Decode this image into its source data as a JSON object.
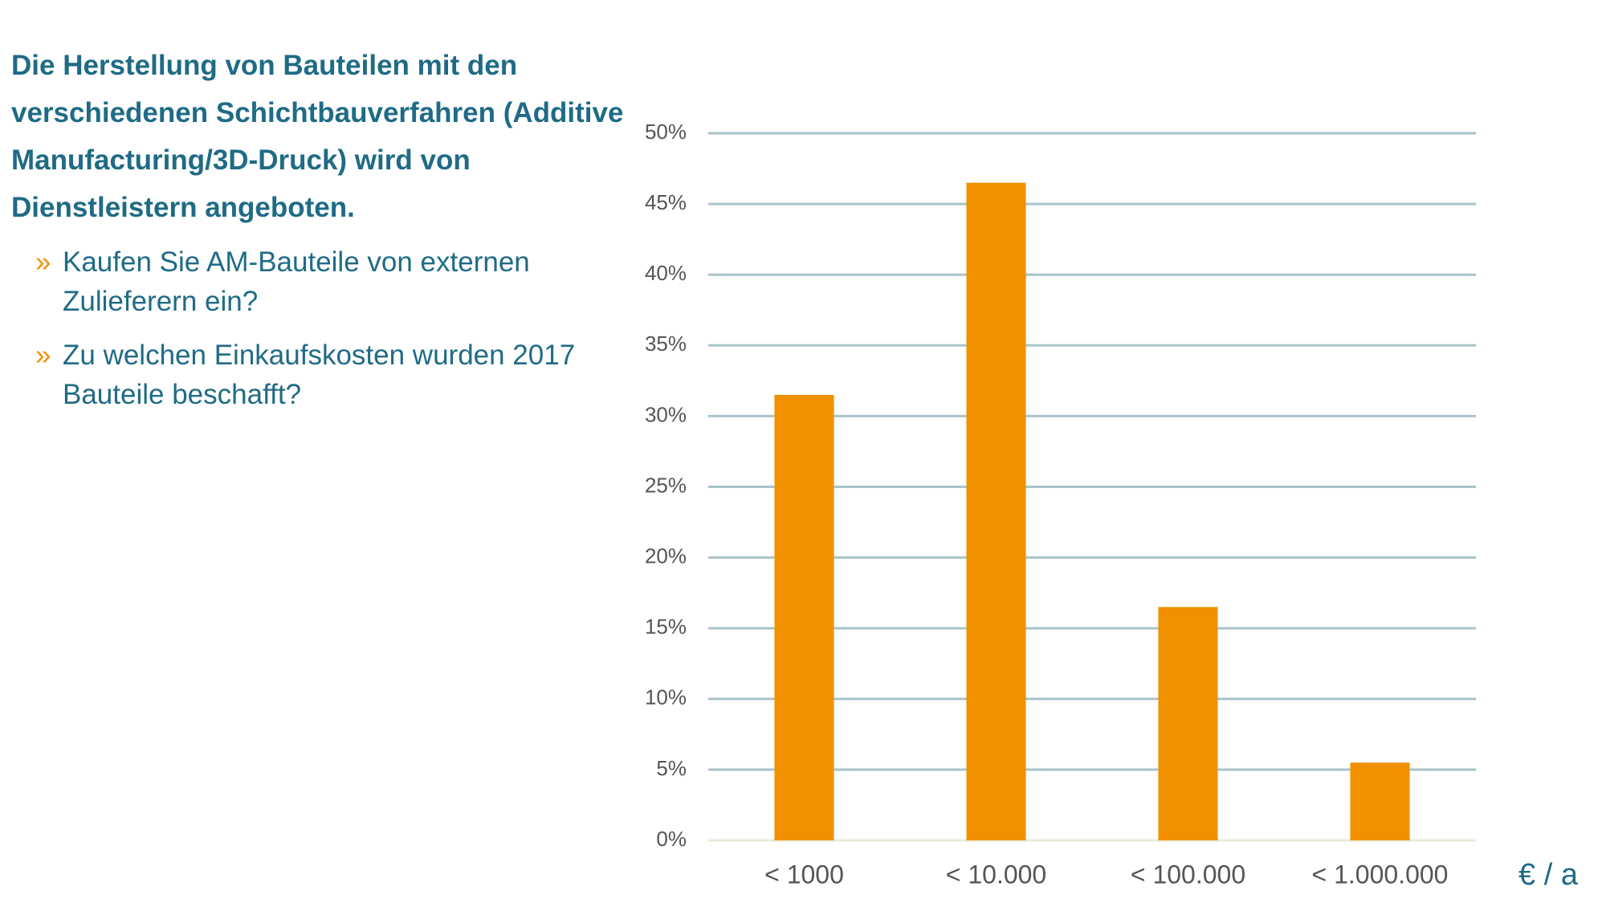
{
  "heading": "Die Herstellung von Bauteilen mit den verschiedenen Schichtbauverfahren (Additive Manufacturing/3D-Druck) wird von Dienstleistern angeboten.",
  "questions": [
    "Kaufen Sie AM-Bauteile von externen Zulieferern ein?",
    "Zu welchen Einkaufskosten wurden 2017 Bauteile beschafft?"
  ],
  "chart_data": {
    "type": "bar",
    "categories": [
      "< 1000",
      "< 10.000",
      "< 100.000",
      "< 1.000.000"
    ],
    "values": [
      31.5,
      46.5,
      16.5,
      5.5
    ],
    "color": "#f29100",
    "x_label": "€ / a",
    "ylim": [
      0,
      50
    ],
    "yticks": [
      {
        "value": 0,
        "label": "0%"
      },
      {
        "value": 5,
        "label": "5%"
      },
      {
        "value": 10,
        "label": "10%"
      },
      {
        "value": 15,
        "label": "15%"
      },
      {
        "value": 20,
        "label": "20%"
      },
      {
        "value": 25,
        "label": "25%"
      },
      {
        "value": 30,
        "label": "30%"
      },
      {
        "value": 35,
        "label": "35%"
      },
      {
        "value": 40,
        "label": "40%"
      },
      {
        "value": 45,
        "label": "45%"
      },
      {
        "value": 50,
        "label": "50%"
      }
    ],
    "grid": true
  }
}
